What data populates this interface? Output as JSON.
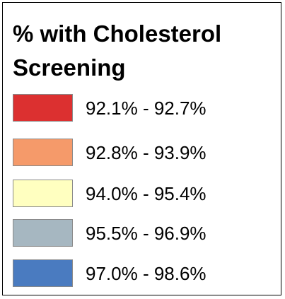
{
  "legend": {
    "title": "% with Cholesterol Screening",
    "items": [
      {
        "label": "92.1% - 92.7%",
        "color": "#dc3030"
      },
      {
        "label": "92.8% - 93.9%",
        "color": "#f59a6a"
      },
      {
        "label": "94.0% - 95.4%",
        "color": "#ffffc0"
      },
      {
        "label": "95.5% - 96.9%",
        "color": "#a6b7c1"
      },
      {
        "label": "97.0% - 98.6%",
        "color": "#4a7bc0"
      }
    ]
  }
}
